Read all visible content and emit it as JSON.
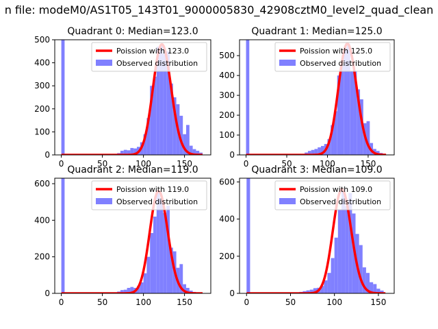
{
  "figure": {
    "suptitle": "n file: modeM0/AS1T05_143T01_9000005830_42908cztM0_level2_quad_clean"
  },
  "colors": {
    "hist": "#8080ff",
    "poisson": "#ff0000",
    "axis": "#000000",
    "background": "#ffffff"
  },
  "chart_data": [
    {
      "type": "bar",
      "title": "Quadrant 0: Median=123.0",
      "xlim": [
        -8,
        182
      ],
      "ylim": [
        0,
        500
      ],
      "xticks": [
        0,
        50,
        100,
        150
      ],
      "yticks": [
        0,
        100,
        200,
        300,
        400,
        500
      ],
      "median": 123.0,
      "legend_loc": "top-right",
      "series": [
        {
          "name": "Poission with 123.0",
          "kind": "line"
        },
        {
          "name": "Observed distribution",
          "kind": "hist"
        }
      ],
      "hist": {
        "bin_width": 4,
        "zero_bin": 500,
        "bins": [
          [
            64,
            2
          ],
          [
            68,
            8
          ],
          [
            72,
            18
          ],
          [
            76,
            22
          ],
          [
            80,
            20
          ],
          [
            84,
            30
          ],
          [
            88,
            28
          ],
          [
            92,
            35
          ],
          [
            96,
            55
          ],
          [
            100,
            90
          ],
          [
            104,
            160
          ],
          [
            108,
            300
          ],
          [
            112,
            340
          ],
          [
            116,
            470
          ],
          [
            120,
            480
          ],
          [
            124,
            440
          ],
          [
            128,
            450
          ],
          [
            132,
            310
          ],
          [
            136,
            250
          ],
          [
            140,
            220
          ],
          [
            144,
            170
          ],
          [
            148,
            90
          ],
          [
            152,
            130
          ],
          [
            156,
            40
          ],
          [
            160,
            25
          ],
          [
            164,
            18
          ],
          [
            168,
            10
          ]
        ]
      }
    },
    {
      "type": "bar",
      "title": "Quadrant 1: Median=125.0",
      "xlim": [
        -8,
        182
      ],
      "ylim": [
        0,
        580
      ],
      "xticks": [
        0,
        50,
        100,
        150
      ],
      "yticks": [
        0,
        100,
        200,
        300,
        400,
        500
      ],
      "median": 125.0,
      "legend_loc": "top-right",
      "series": [
        {
          "name": "Poission with 125.0",
          "kind": "line"
        },
        {
          "name": "Observed distribution",
          "kind": "hist"
        }
      ],
      "hist": {
        "bin_width": 4,
        "zero_bin": 580,
        "bins": [
          [
            68,
            4
          ],
          [
            72,
            12
          ],
          [
            76,
            20
          ],
          [
            80,
            25
          ],
          [
            84,
            30
          ],
          [
            88,
            38
          ],
          [
            92,
            45
          ],
          [
            96,
            55
          ],
          [
            100,
            80
          ],
          [
            104,
            150
          ],
          [
            108,
            220
          ],
          [
            112,
            400
          ],
          [
            116,
            450
          ],
          [
            120,
            540
          ],
          [
            124,
            560
          ],
          [
            128,
            420
          ],
          [
            132,
            420
          ],
          [
            136,
            330
          ],
          [
            140,
            280
          ],
          [
            144,
            160
          ],
          [
            148,
            170
          ],
          [
            152,
            60
          ],
          [
            156,
            30
          ],
          [
            160,
            20
          ],
          [
            164,
            10
          ]
        ]
      }
    },
    {
      "type": "bar",
      "title": "Quadrant 2: Median=119.0",
      "xlim": [
        -8,
        182
      ],
      "ylim": [
        0,
        630
      ],
      "xticks": [
        0,
        50,
        100,
        150
      ],
      "yticks": [
        0,
        200,
        400,
        600
      ],
      "median": 119.0,
      "legend_loc": "top-right",
      "series": [
        {
          "name": "Poission with 119.0",
          "kind": "line"
        },
        {
          "name": "Observed distribution",
          "kind": "hist"
        }
      ],
      "hist": {
        "bin_width": 4,
        "zero_bin": 630,
        "bins": [
          [
            64,
            4
          ],
          [
            68,
            10
          ],
          [
            72,
            18
          ],
          [
            76,
            20
          ],
          [
            80,
            30
          ],
          [
            84,
            35
          ],
          [
            88,
            30
          ],
          [
            92,
            40
          ],
          [
            96,
            60
          ],
          [
            100,
            110
          ],
          [
            104,
            200
          ],
          [
            108,
            330
          ],
          [
            112,
            420
          ],
          [
            116,
            560
          ],
          [
            120,
            520
          ],
          [
            124,
            440
          ],
          [
            128,
            480
          ],
          [
            132,
            250
          ],
          [
            136,
            230
          ],
          [
            140,
            140
          ],
          [
            144,
            160
          ],
          [
            148,
            50
          ],
          [
            152,
            30
          ],
          [
            156,
            15
          ],
          [
            160,
            8
          ]
        ]
      }
    },
    {
      "type": "bar",
      "title": "Quadrant 3: Median=109.0",
      "xlim": [
        -8,
        168
      ],
      "ylim": [
        0,
        620
      ],
      "xticks": [
        0,
        50,
        100,
        150
      ],
      "yticks": [
        0,
        200,
        400,
        600
      ],
      "median": 109.0,
      "legend_loc": "top-right",
      "series": [
        {
          "name": "Poission with 109.0",
          "kind": "line"
        },
        {
          "name": "Observed distribution",
          "kind": "hist"
        }
      ],
      "hist": {
        "bin_width": 4,
        "zero_bin": 620,
        "bins": [
          [
            56,
            3
          ],
          [
            60,
            8
          ],
          [
            64,
            12
          ],
          [
            68,
            16
          ],
          [
            72,
            20
          ],
          [
            76,
            28
          ],
          [
            80,
            30
          ],
          [
            84,
            40
          ],
          [
            88,
            70
          ],
          [
            92,
            110
          ],
          [
            96,
            190
          ],
          [
            100,
            300
          ],
          [
            104,
            450
          ],
          [
            108,
            560
          ],
          [
            112,
            470
          ],
          [
            116,
            540
          ],
          [
            120,
            430
          ],
          [
            124,
            320
          ],
          [
            128,
            260
          ],
          [
            132,
            140
          ],
          [
            136,
            110
          ],
          [
            140,
            60
          ],
          [
            144,
            50
          ],
          [
            148,
            25
          ],
          [
            152,
            15
          ]
        ]
      }
    }
  ]
}
